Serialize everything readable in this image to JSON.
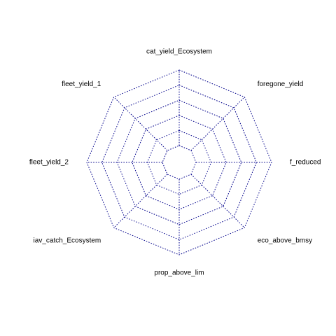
{
  "chart_data": {
    "type": "radar",
    "axes": [
      "cat_yield_Ecosystem",
      "foregone_yield",
      "f_reduced",
      "eco_above_bmsy",
      "prop_above_lim",
      "iav_catch_Ecosystem",
      "fleet_yield_2",
      "fleet_yield_1"
    ],
    "rings": 6,
    "grid_color": "#00008b",
    "grid_style": "dotted",
    "series": []
  }
}
